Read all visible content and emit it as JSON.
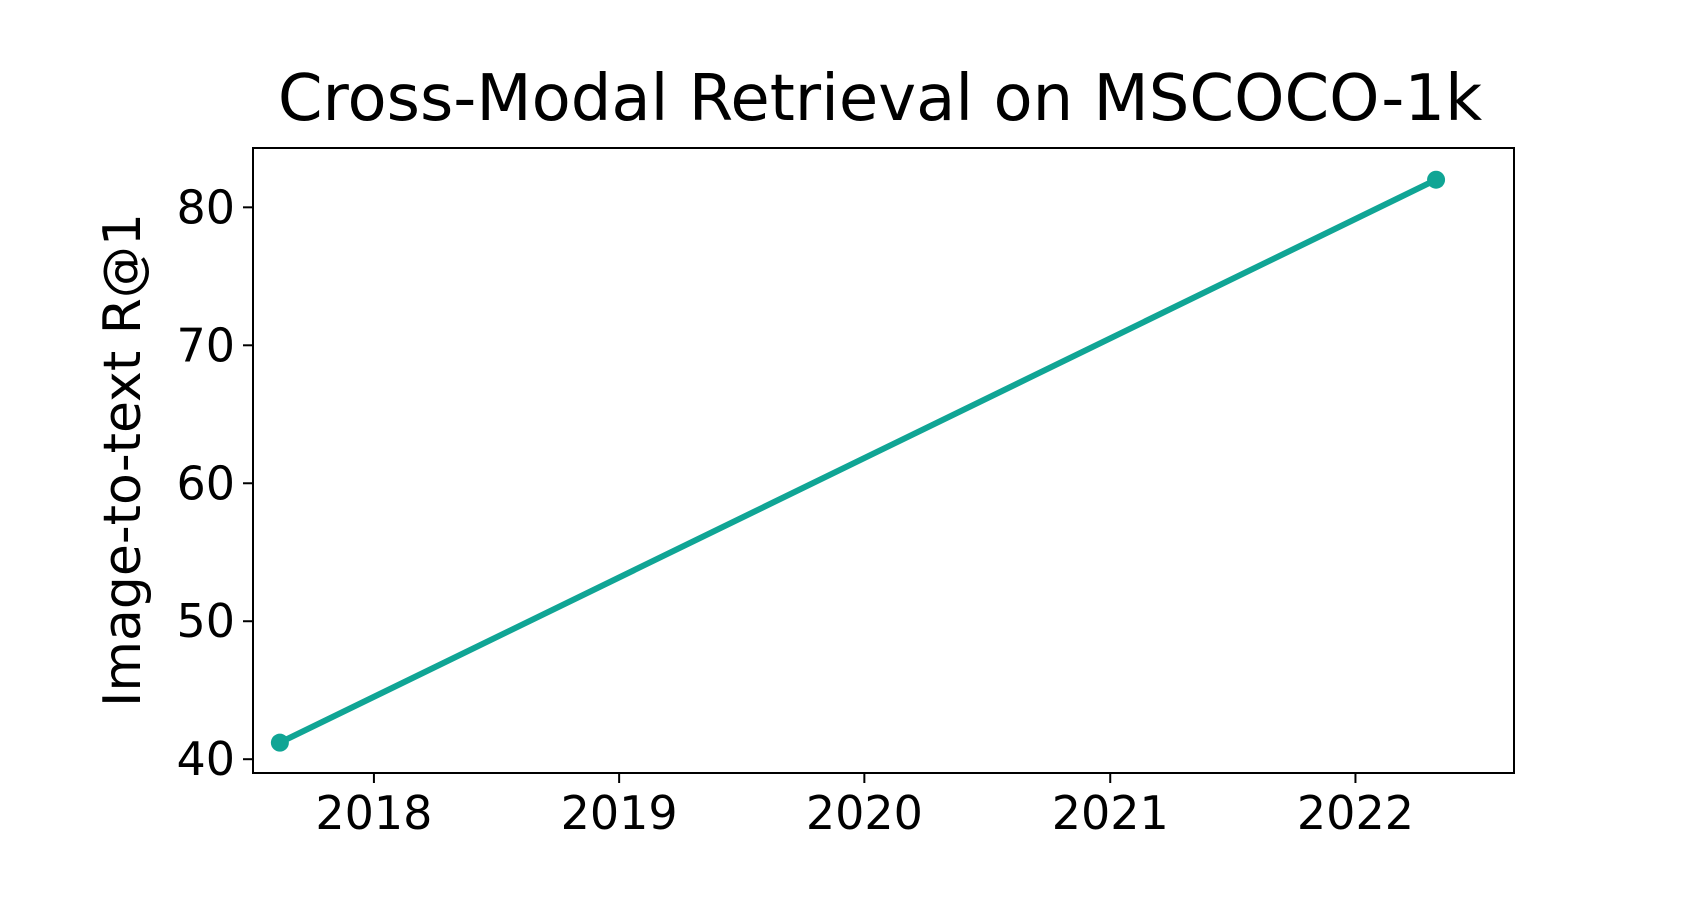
{
  "chart_data": {
    "type": "line",
    "title": "Cross-Modal Retrieval on MSCOCO-1k",
    "xlabel": "",
    "ylabel": "Image-to-text R@1",
    "x_ticks": [
      "2018",
      "2019",
      "2020",
      "2021",
      "2022"
    ],
    "y_ticks": [
      40,
      50,
      60,
      70,
      80
    ],
    "xlim": [
      "2017-07-05",
      "2022-08-25"
    ],
    "ylim": [
      39.0,
      84.3
    ],
    "grid": false,
    "series": [
      {
        "color": "#10A595",
        "points": [
          {
            "x": "2017-08-14",
            "y": 41.2
          },
          {
            "x": "2022-05-01",
            "y": 82.0
          }
        ]
      }
    ]
  }
}
